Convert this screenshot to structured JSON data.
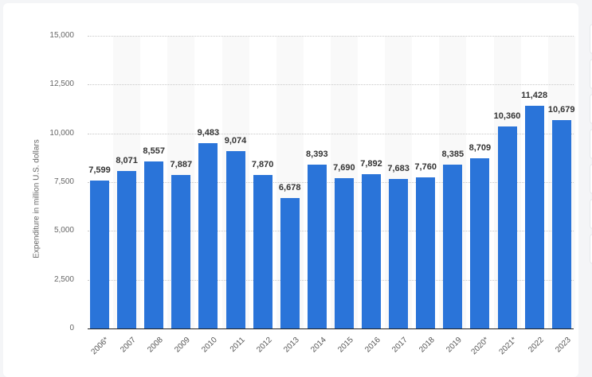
{
  "chart_data": {
    "type": "bar",
    "title": "",
    "xlabel": "",
    "ylabel": "Expenditure in million U.S. dollars",
    "ylim": [
      0,
      15000
    ],
    "yticks": [
      "0",
      "2,500",
      "5,000",
      "7,500",
      "10,000",
      "12,500",
      "15,000"
    ],
    "grid": true,
    "categories": [
      "2006*",
      "2007",
      "2008",
      "2009",
      "2010",
      "2011",
      "2012",
      "2013",
      "2014",
      "2015",
      "2016",
      "2017",
      "2018",
      "2019",
      "2020*",
      "2021*",
      "2022",
      "2023"
    ],
    "values": [
      7599,
      8071,
      8557,
      7887,
      9483,
      9074,
      7870,
      6678,
      8393,
      7690,
      7892,
      7683,
      7760,
      8385,
      8709,
      10360,
      11428,
      10679
    ],
    "value_labels": [
      "7,599",
      "8,071",
      "8,557",
      "7,887",
      "9,483",
      "9,074",
      "7,870",
      "6,678",
      "8,393",
      "7,690",
      "7,892",
      "7,683",
      "7,760",
      "8,385",
      "8,709",
      "10,360",
      "11,428",
      "10,679"
    ],
    "bar_color": "#2a74d9"
  }
}
